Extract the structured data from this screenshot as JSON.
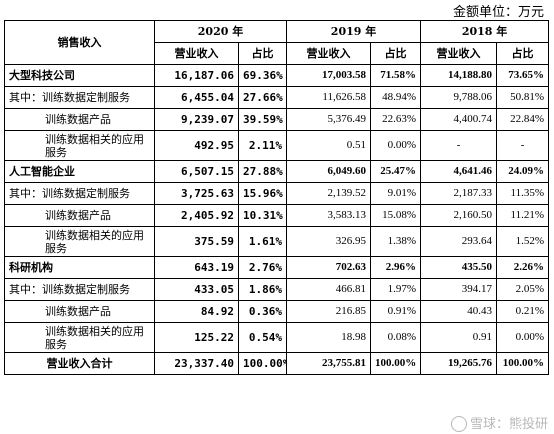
{
  "unit_label": "金额单位：万元",
  "header": {
    "category": "销售收入",
    "years": [
      "2020 年",
      "2019 年",
      "2018 年"
    ],
    "revenue": "营业收入",
    "share": "占比"
  },
  "rows": [
    {
      "label": "大型科技公司",
      "type": "group",
      "v2020": "16,187.06",
      "s2020": "69.36%",
      "v2019": "17,003.58",
      "s2019": "71.58%",
      "v2018": "14,188.80",
      "s2018": "73.65%"
    },
    {
      "label": "其中：训练数据定制服务",
      "type": "sub-first",
      "v2020": "6,455.04",
      "s2020": "27.66%",
      "v2019": "11,626.58",
      "s2019": "48.94%",
      "v2018": "9,788.06",
      "s2018": "50.81%"
    },
    {
      "label": "训练数据产品",
      "type": "sub",
      "v2020": "9,239.07",
      "s2020": "39.59%",
      "v2019": "5,376.49",
      "s2019": "22.63%",
      "v2018": "4,400.74",
      "s2018": "22.84%"
    },
    {
      "label": "训练数据相关的应用服务",
      "type": "sub-wrap",
      "v2020": "492.95",
      "s2020": "2.11%",
      "v2019": "0.51",
      "s2019": "0.00%",
      "v2018": "-",
      "s2018": "-"
    },
    {
      "label": "人工智能企业",
      "type": "group",
      "v2020": "6,507.15",
      "s2020": "27.88%",
      "v2019": "6,049.60",
      "s2019": "25.47%",
      "v2018": "4,641.46",
      "s2018": "24.09%"
    },
    {
      "label": "其中：训练数据定制服务",
      "type": "sub-first",
      "v2020": "3,725.63",
      "s2020": "15.96%",
      "v2019": "2,139.52",
      "s2019": "9.01%",
      "v2018": "2,187.33",
      "s2018": "11.35%"
    },
    {
      "label": "训练数据产品",
      "type": "sub",
      "v2020": "2,405.92",
      "s2020": "10.31%",
      "v2019": "3,583.13",
      "s2019": "15.08%",
      "v2018": "2,160.50",
      "s2018": "11.21%"
    },
    {
      "label": "训练数据相关的应用服务",
      "type": "sub-wrap",
      "v2020": "375.59",
      "s2020": "1.61%",
      "v2019": "326.95",
      "s2019": "1.38%",
      "v2018": "293.64",
      "s2018": "1.52%"
    },
    {
      "label": "科研机构",
      "type": "group",
      "v2020": "643.19",
      "s2020": "2.76%",
      "v2019": "702.63",
      "s2019": "2.96%",
      "v2018": "435.50",
      "s2018": "2.26%"
    },
    {
      "label": "其中：训练数据定制服务",
      "type": "sub-first",
      "v2020": "433.05",
      "s2020": "1.86%",
      "v2019": "466.81",
      "s2019": "1.97%",
      "v2018": "394.17",
      "s2018": "2.05%"
    },
    {
      "label": "训练数据产品",
      "type": "sub",
      "v2020": "84.92",
      "s2020": "0.36%",
      "v2019": "216.85",
      "s2019": "0.91%",
      "v2018": "40.43",
      "s2018": "0.21%"
    },
    {
      "label": "训练数据相关的应用服务",
      "type": "sub-wrap",
      "v2020": "125.22",
      "s2020": "0.54%",
      "v2019": "18.98",
      "s2019": "0.08%",
      "v2018": "0.91",
      "s2018": "0.00%"
    },
    {
      "label": "营业收入合计",
      "type": "total",
      "v2020": "23,337.40",
      "s2020": "100.00%",
      "v2019": "23,755.81",
      "s2019": "100.00%",
      "v2018": "19,265.76",
      "s2018": "100.00%"
    }
  ],
  "watermark": "雪球：熊投研"
}
